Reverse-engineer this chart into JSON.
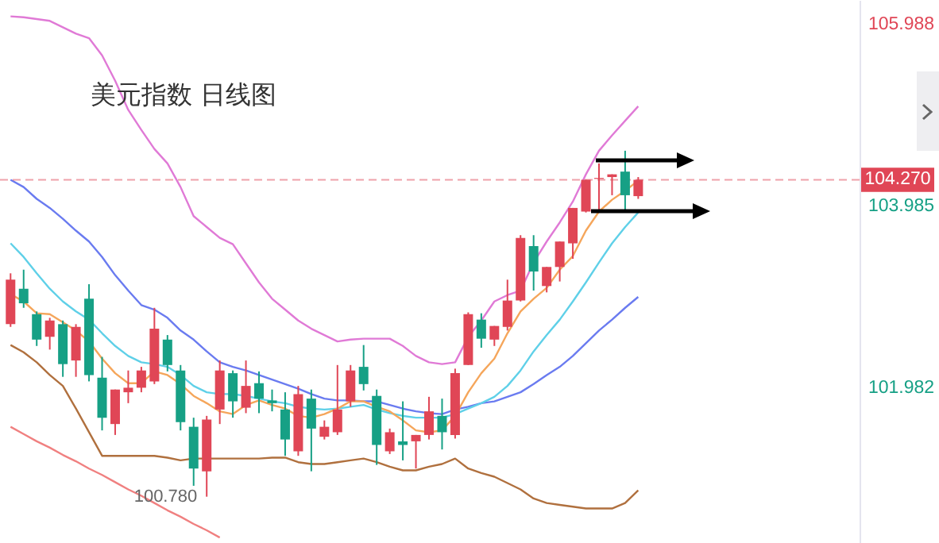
{
  "chart_data": {
    "type": "candlestick",
    "title": "美元指数 日线图",
    "categories": [
      null,
      null,
      null,
      null,
      null,
      null,
      null,
      null,
      null,
      null,
      null,
      null,
      null,
      null,
      null,
      null,
      null,
      null,
      null,
      null,
      null,
      null,
      null,
      null,
      null,
      null,
      null,
      null,
      null,
      null,
      null,
      null,
      null,
      null,
      null,
      null,
      null,
      null,
      null,
      null,
      null,
      null,
      null,
      null,
      null,
      null,
      null,
      null,
      null
    ],
    "ohlc": [
      [
        102.68,
        103.24,
        102.65,
        103.17
      ],
      [
        103.07,
        103.28,
        102.86,
        102.91
      ],
      [
        102.79,
        102.82,
        102.44,
        102.51
      ],
      [
        102.54,
        102.75,
        102.4,
        102.72
      ],
      [
        102.68,
        102.72,
        102.1,
        102.24
      ],
      [
        102.28,
        102.68,
        102.1,
        102.65
      ],
      [
        102.96,
        103.12,
        102.05,
        102.12
      ],
      [
        102.09,
        102.32,
        101.51,
        101.65
      ],
      [
        101.58,
        101.96,
        101.46,
        101.96
      ],
      [
        101.93,
        102.17,
        101.81,
        101.98
      ],
      [
        101.98,
        102.21,
        101.93,
        102.17
      ],
      [
        102.05,
        102.86,
        102.02,
        102.63
      ],
      [
        102.51,
        102.56,
        102.16,
        102.23
      ],
      [
        102.17,
        102.23,
        101.51,
        101.6
      ],
      [
        101.55,
        101.65,
        100.9,
        101.09
      ],
      [
        101.06,
        101.67,
        100.78,
        101.63
      ],
      [
        101.74,
        102.28,
        101.58,
        102.17
      ],
      [
        102.14,
        102.17,
        101.65,
        101.83
      ],
      [
        101.76,
        102.28,
        101.7,
        102.0
      ],
      [
        102.03,
        102.16,
        101.7,
        101.86
      ],
      [
        101.84,
        101.96,
        101.72,
        101.81
      ],
      [
        101.74,
        101.93,
        101.23,
        101.41
      ],
      [
        101.28,
        102.0,
        101.23,
        101.91
      ],
      [
        101.86,
        101.96,
        101.06,
        101.53
      ],
      [
        101.44,
        101.62,
        101.41,
        101.55
      ],
      [
        101.49,
        102.23,
        101.46,
        101.74
      ],
      [
        101.83,
        102.23,
        101.77,
        102.17
      ],
      [
        102.21,
        102.45,
        101.95,
        102.02
      ],
      [
        101.89,
        101.96,
        101.13,
        101.35
      ],
      [
        101.28,
        101.53,
        101.25,
        101.49
      ],
      [
        101.39,
        101.83,
        101.18,
        101.35
      ],
      [
        101.39,
        101.46,
        101.09,
        101.46
      ],
      [
        101.46,
        101.88,
        101.41,
        101.72
      ],
      [
        101.67,
        101.86,
        101.3,
        101.49
      ],
      [
        101.46,
        102.19,
        101.42,
        102.14
      ],
      [
        102.23,
        102.81,
        102.23,
        102.79
      ],
      [
        102.73,
        102.8,
        102.42,
        102.52
      ],
      [
        102.51,
        102.66,
        102.44,
        102.66
      ],
      [
        102.65,
        103.17,
        102.61,
        102.94
      ],
      [
        102.94,
        103.66,
        102.93,
        103.63
      ],
      [
        103.54,
        103.66,
        103.05,
        103.26
      ],
      [
        103.1,
        103.31,
        103.03,
        103.31
      ],
      [
        103.31,
        103.59,
        103.15,
        103.59
      ],
      [
        103.57,
        103.96,
        103.4,
        103.96
      ],
      [
        103.92,
        104.27,
        103.91,
        104.27
      ],
      [
        104.28,
        104.45,
        103.92,
        104.29
      ],
      [
        104.3,
        104.33,
        104.1,
        104.33
      ],
      [
        104.36,
        104.59,
        103.92,
        104.1
      ],
      [
        104.09,
        104.3,
        104.06,
        104.27
      ]
    ],
    "series": [
      {
        "type": "line",
        "color": "#e07ad6",
        "values": [
          106.07,
          106.06,
          106.04,
          106.02,
          105.95,
          105.88,
          105.83,
          105.64,
          105.36,
          105.04,
          104.82,
          104.61,
          104.45,
          104.19,
          103.87,
          103.75,
          103.63,
          103.56,
          103.35,
          103.14,
          102.96,
          102.84,
          102.72,
          102.63,
          102.56,
          102.49,
          102.51,
          102.52,
          102.52,
          102.52,
          102.44,
          102.33,
          102.26,
          102.24,
          102.26,
          102.54,
          102.72,
          102.93,
          103.0,
          103.05,
          103.36,
          103.59,
          103.8,
          104.03,
          104.33,
          104.59,
          104.76,
          104.92,
          105.08
        ]
      },
      {
        "type": "line",
        "color": "#6a7bf0",
        "values": [
          104.27,
          104.19,
          104.06,
          103.96,
          103.84,
          103.71,
          103.59,
          103.42,
          103.22,
          103.05,
          102.89,
          102.84,
          102.75,
          102.61,
          102.51,
          102.38,
          102.26,
          102.21,
          102.17,
          102.12,
          102.07,
          102.02,
          101.97,
          101.91,
          101.86,
          101.84,
          101.84,
          101.83,
          101.83,
          101.79,
          101.75,
          101.72,
          101.7,
          101.69,
          101.74,
          101.77,
          101.81,
          101.83,
          101.88,
          101.93,
          102.02,
          102.12,
          102.21,
          102.33,
          102.47,
          102.61,
          102.73,
          102.86,
          102.98
        ]
      },
      {
        "type": "line",
        "color": "#5fd0e8",
        "values": [
          103.57,
          103.42,
          103.24,
          103.07,
          102.93,
          102.82,
          102.73,
          102.58,
          102.44,
          102.33,
          102.26,
          102.24,
          102.21,
          102.12,
          102.0,
          101.93,
          101.91,
          101.91,
          101.89,
          101.86,
          101.83,
          101.81,
          101.77,
          101.75,
          101.74,
          101.75,
          101.77,
          101.79,
          101.74,
          101.7,
          101.67,
          101.65,
          101.65,
          101.65,
          101.69,
          101.75,
          101.81,
          101.88,
          102.0,
          102.17,
          102.38,
          102.56,
          102.73,
          102.93,
          103.14,
          103.36,
          103.57,
          103.75,
          103.91
        ]
      },
      {
        "type": "line",
        "color": "#f5a65b",
        "values": [
          103.01,
          102.93,
          102.8,
          102.79,
          102.7,
          102.61,
          102.49,
          102.3,
          102.14,
          102.03,
          102.03,
          102.16,
          102.12,
          102.02,
          101.89,
          101.81,
          101.72,
          101.69,
          101.79,
          101.84,
          101.79,
          101.75,
          101.67,
          101.65,
          101.69,
          101.75,
          101.83,
          101.83,
          101.77,
          101.72,
          101.62,
          101.51,
          101.49,
          101.51,
          101.67,
          101.93,
          102.14,
          102.3,
          102.58,
          102.82,
          102.96,
          103.08,
          103.28,
          103.43,
          103.71,
          103.92,
          104.05,
          104.15,
          104.26
        ]
      },
      {
        "type": "line",
        "color": "#b0703e",
        "values": [
          102.45,
          102.37,
          102.26,
          102.12,
          102.0,
          101.75,
          101.49,
          101.23,
          101.23,
          101.23,
          101.23,
          101.23,
          101.21,
          101.18,
          101.2,
          101.2,
          101.2,
          101.2,
          101.2,
          101.2,
          101.21,
          101.21,
          101.16,
          101.14,
          101.14,
          101.16,
          101.18,
          101.2,
          101.16,
          101.11,
          101.07,
          101.07,
          101.11,
          101.14,
          101.2,
          101.09,
          101.04,
          101.0,
          100.93,
          100.86,
          100.76,
          100.71,
          100.69,
          100.67,
          100.65,
          100.65,
          100.65,
          100.71,
          100.85
        ]
      },
      {
        "type": "line",
        "color": "#f08080",
        "values": [
          101.55,
          101.47,
          101.39,
          101.32,
          101.24,
          101.17,
          101.09,
          101.02,
          100.94,
          100.86,
          100.79,
          100.71,
          100.63,
          100.56,
          100.48,
          100.41,
          100.33,
          null,
          null,
          null,
          null,
          null,
          null,
          null,
          null,
          null,
          null,
          null,
          null,
          null,
          null,
          null,
          null,
          null,
          null,
          null,
          null,
          null,
          null,
          null,
          null,
          null,
          null,
          null,
          null,
          null,
          null,
          null,
          null
        ]
      }
    ],
    "ylim": [
      100.27,
      106.25
    ],
    "yticks": [
      105.988,
      103.985,
      101.982
    ],
    "ref_lines": [
      {
        "axis": "y",
        "value": 104.27,
        "label": "104.270",
        "color": "#e04656",
        "line_style": "dashed"
      }
    ],
    "annotations": [
      "100.780"
    ],
    "tick_labels": "y",
    "grid": false
  }
}
